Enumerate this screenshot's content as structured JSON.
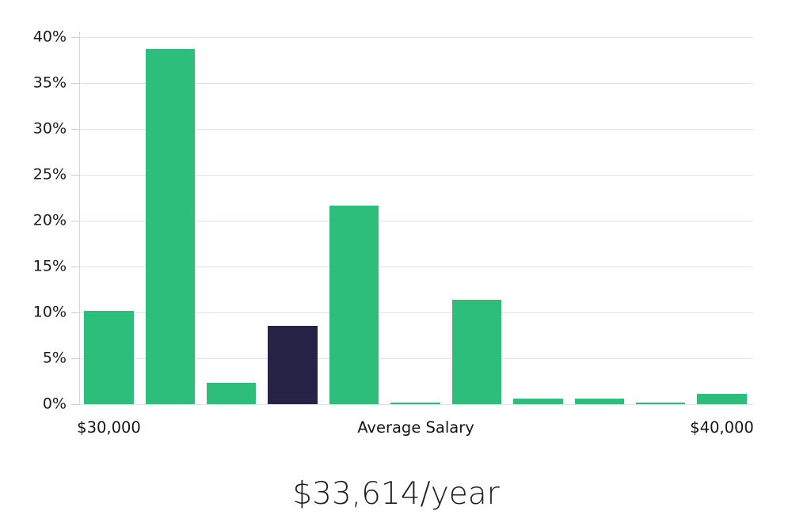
{
  "chart_data": {
    "type": "bar",
    "title": "",
    "xlabel": "Average Salary",
    "ylabel": "",
    "ylim": [
      0,
      40
    ],
    "grid": true,
    "legend": false,
    "y_tick_labels": [
      "0%",
      "5%",
      "10%",
      "15%",
      "20%",
      "25%",
      "30%",
      "35%",
      "40%"
    ],
    "values": [
      10.2,
      38.7,
      2.3,
      8.5,
      21.6,
      0.15,
      11.4,
      0.6,
      0.6,
      0.17,
      1.15
    ],
    "highlight_index": 3,
    "x_axis_labels": [
      {
        "text": "$30,000",
        "position": "left"
      },
      {
        "text": "Average Salary",
        "position": "center"
      },
      {
        "text": "$40,000",
        "position": "right"
      }
    ],
    "colors": {
      "bar": "#2ebe7b",
      "highlight_bar": "#262347",
      "gridline": "#e3e3e3",
      "axis_line": "#d4d4d4",
      "tick": "#cccccc",
      "text": "#1c1c1c"
    }
  },
  "caption": {
    "text": "$33,614/year"
  }
}
